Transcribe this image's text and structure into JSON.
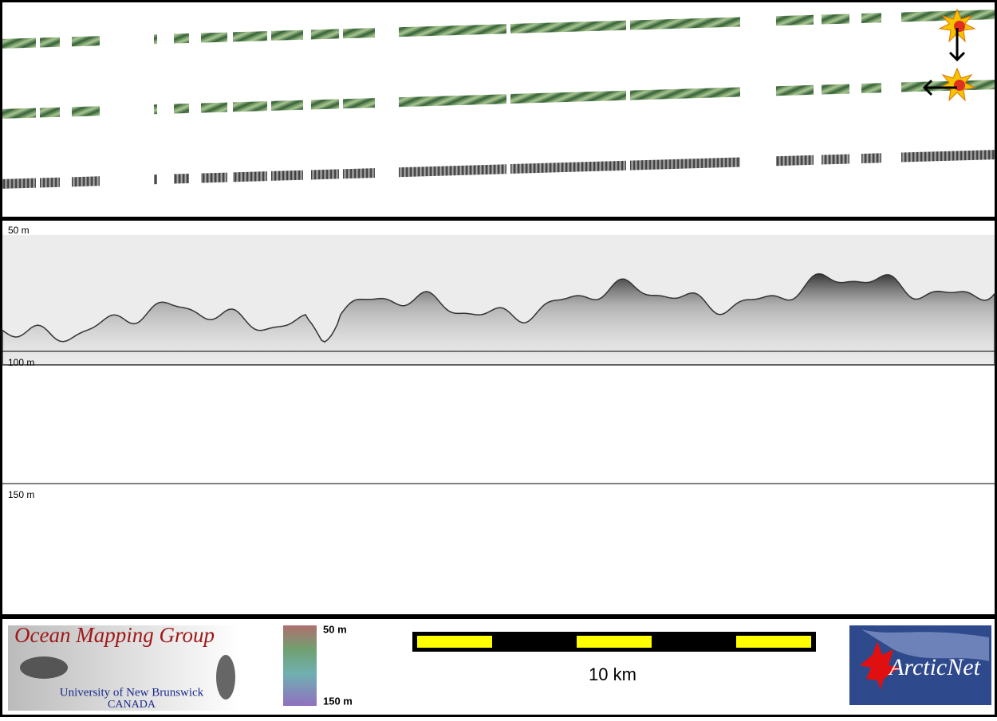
{
  "profile": {
    "depth_labels": [
      "50 m",
      "100 m",
      "150 m"
    ]
  },
  "footer": {
    "logo_left": {
      "title": "Ocean Mapping Group",
      "line1": "University of New Brunswick",
      "line2": "CANADA"
    },
    "colorbar": {
      "top_label": "50 m",
      "bottom_label": "150 m"
    },
    "scale_bar": {
      "label": "10 km"
    },
    "logo_right": {
      "title": "ArcticNet"
    }
  }
}
